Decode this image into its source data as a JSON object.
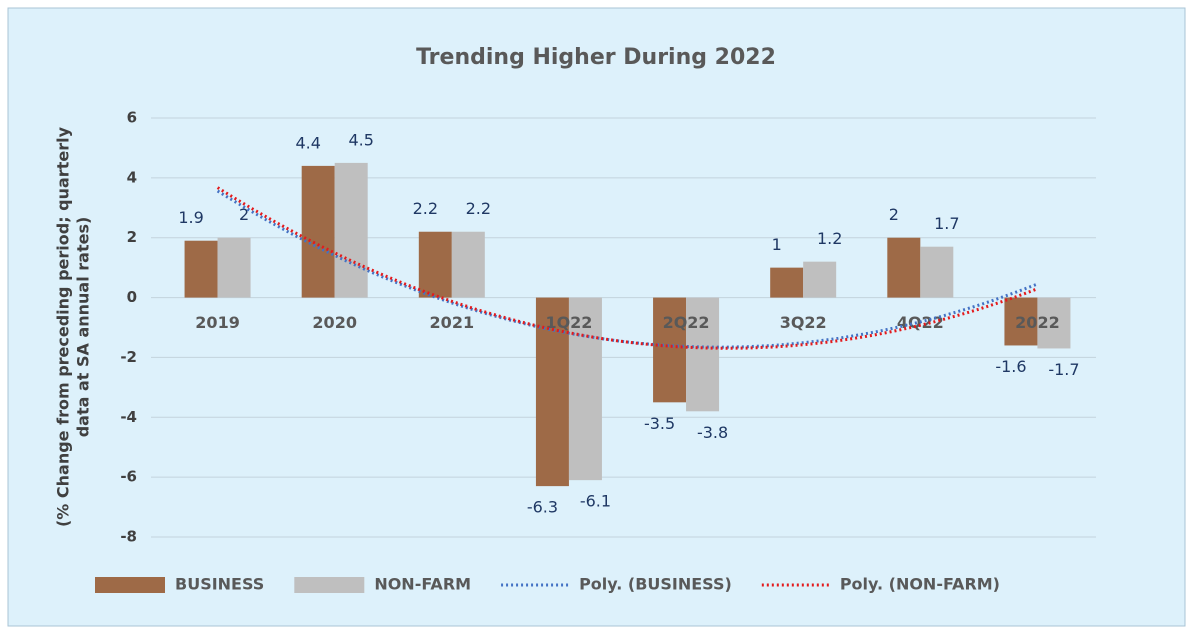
{
  "chart_data": {
    "type": "bar",
    "title": "Trending Higher During 2022",
    "ylabel": [
      "(% Change from preceding  period; quarterly",
      "data at SA annual rates)"
    ],
    "categories": [
      "2019",
      "2020",
      "2021",
      "1Q22",
      "2Q22",
      "3Q22",
      "4Q22",
      "2022"
    ],
    "series": [
      {
        "name": "BUSINESS",
        "color": "#9e6a47",
        "values": [
          1.9,
          4.4,
          2.2,
          -6.3,
          -3.5,
          1,
          2,
          -1.6
        ],
        "trendline": {
          "name": "Poly. (BUSINESS)",
          "color": "#4472c4",
          "order": 2
        }
      },
      {
        "name": "NON-FARM",
        "color": "#bfbfbf",
        "values": [
          2,
          4.5,
          2.2,
          -6.1,
          -3.8,
          1.2,
          1.7,
          -1.7
        ],
        "trendline": {
          "name": "Poly. (NON-FARM)",
          "color": "#e31a1c",
          "order": 2
        }
      }
    ],
    "ylim": [
      -8,
      6
    ],
    "yticks": [
      -8,
      -6,
      -4,
      -2,
      0,
      2,
      4,
      6
    ],
    "grid": true,
    "legend": "bottom"
  }
}
